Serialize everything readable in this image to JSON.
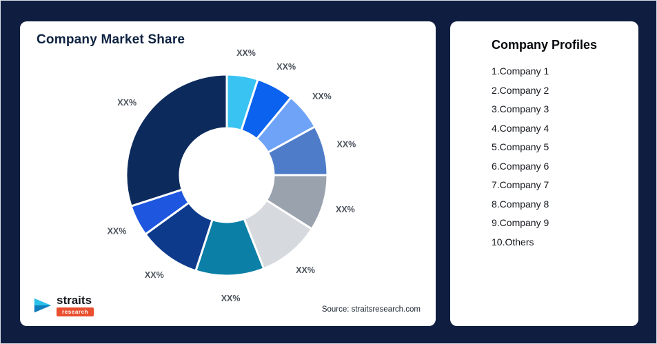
{
  "page": {
    "background": "#0F1E40"
  },
  "left_card": {
    "title": "Company Market Share",
    "source_text": "Source: straitsresearch.com",
    "logo": {
      "brand": "straits",
      "sub": "research"
    }
  },
  "right_card": {
    "title": "Company Profiles",
    "items": [
      "1.Company 1",
      "2.Company 2",
      "3.Company 3",
      "4.Company 4",
      "5.Company 5",
      "6.Company 6",
      "7.Company 7",
      "8.Company 8",
      "9.Company 9",
      "10.Others"
    ]
  },
  "chart_data": {
    "type": "pie",
    "variant": "donut",
    "title": "Company Market Share",
    "legend_position": "none",
    "grid": false,
    "value_label_placeholder": "XX%",
    "note": "All slice labels display the placeholder 'XX%'; values are visual estimates of each slice's share in percent, clockwise from 12 o'clock",
    "segments": [
      {
        "name": "segment-1",
        "label": "XX%",
        "value": 5,
        "color": "#38C3F3"
      },
      {
        "name": "segment-2",
        "label": "XX%",
        "value": 6,
        "color": "#0B62EE"
      },
      {
        "name": "segment-3",
        "label": "XX%",
        "value": 6,
        "color": "#6FA3F7"
      },
      {
        "name": "segment-4",
        "label": "XX%",
        "value": 8,
        "color": "#4E7CC9"
      },
      {
        "name": "segment-5",
        "label": "XX%",
        "value": 9,
        "color": "#9AA2AE"
      },
      {
        "name": "segment-6",
        "label": "XX%",
        "value": 10,
        "color": "#D6DADF"
      },
      {
        "name": "segment-7",
        "label": "XX%",
        "value": 11,
        "color": "#0B7FA6"
      },
      {
        "name": "segment-8",
        "label": "XX%",
        "value": 10,
        "color": "#0E3A8C"
      },
      {
        "name": "segment-9",
        "label": "XX%",
        "value": 5,
        "color": "#1E56DF"
      },
      {
        "name": "segment-10",
        "label": "XX%",
        "value": 30,
        "color": "#0C2A5C"
      }
    ]
  }
}
